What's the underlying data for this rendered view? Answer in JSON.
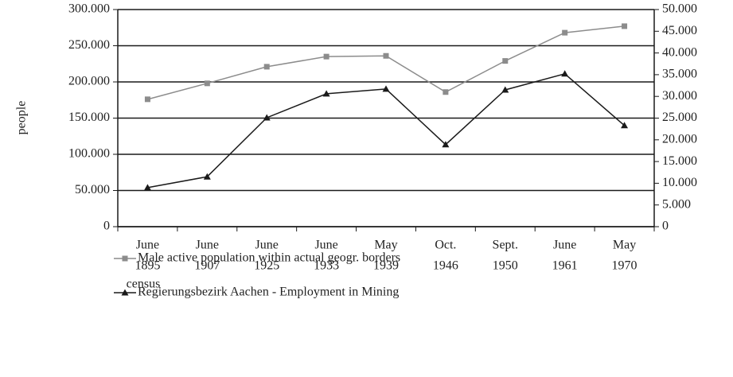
{
  "chart_data": {
    "type": "line",
    "categories": [
      [
        "June",
        "1895"
      ],
      [
        "June",
        "1907"
      ],
      [
        "June",
        "1925"
      ],
      [
        "June",
        "1933"
      ],
      [
        "May",
        "1939"
      ],
      [
        "Oct.",
        "1946"
      ],
      [
        "Sept.",
        "1950"
      ],
      [
        "June",
        "1961"
      ],
      [
        "May",
        "1970"
      ]
    ],
    "x_label": "census",
    "y_label": "people",
    "series": [
      {
        "name": "Male active population within actual geogr. borders",
        "color": "#8c8c8c",
        "marker": "square",
        "values": [
          176000,
          198000,
          221000,
          235000,
          236000,
          186000,
          229000,
          268000,
          277000
        ]
      },
      {
        "name": "Regierungsbezirk Aachen - Employment in Mining",
        "color": "#1a1a1a",
        "marker": "triangle",
        "axis": "y2",
        "values": [
          9000,
          11500,
          25100,
          30600,
          31700,
          18900,
          31500,
          35200,
          23300
        ]
      }
    ],
    "ylim": [
      0,
      300000
    ],
    "yticks": [
      0,
      {
        "value": 50000,
        "label": "50.000"
      },
      {
        "value": 100000,
        "label": "100.000"
      },
      {
        "value": 150000,
        "label": "150.000"
      },
      {
        "value": 200000,
        "label": "200.000"
      },
      {
        "value": 250000,
        "label": "250.000"
      },
      {
        "value": 300000,
        "label": "300.000"
      }
    ],
    "y2lim": [
      0,
      50000
    ],
    "y2ticks": [
      0,
      {
        "value": 5000,
        "label": "5.000"
      },
      {
        "value": 10000,
        "label": "10.000"
      },
      {
        "value": 15000,
        "label": "15.000"
      },
      {
        "value": 20000,
        "label": "20.000"
      },
      {
        "value": 25000,
        "label": "25.000"
      },
      {
        "value": 30000,
        "label": "30.000"
      },
      {
        "value": 35000,
        "label": "35.000"
      },
      {
        "value": 40000,
        "label": "40.000"
      },
      {
        "value": 45000,
        "label": "45.000"
      },
      {
        "value": 50000,
        "label": "50.000"
      }
    ],
    "grid": true
  }
}
